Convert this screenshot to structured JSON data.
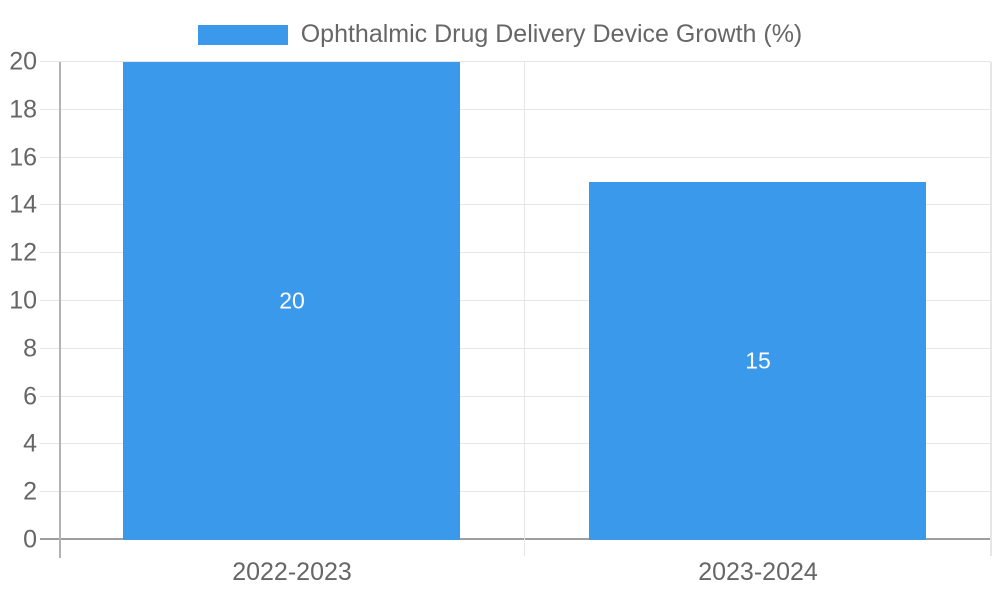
{
  "chart_data": {
    "type": "bar",
    "title": "",
    "legend": {
      "position": "top",
      "label": "Ophthalmic Drug Delivery Device Growth (%)"
    },
    "categories": [
      "2022-2023",
      "2023-2024"
    ],
    "series": [
      {
        "name": "Ophthalmic Drug Delivery Device Growth (%)",
        "values": [
          20,
          15
        ],
        "data_labels": [
          "20",
          "15"
        ]
      }
    ],
    "xlabel": "",
    "ylabel": "",
    "ylim": [
      0,
      20
    ],
    "ytick_step": 2,
    "yticks": [
      "0",
      "2",
      "4",
      "6",
      "8",
      "10",
      "12",
      "14",
      "16",
      "18",
      "20"
    ],
    "grid": true,
    "colors": {
      "bar": "#3B99EC",
      "text": "#666666",
      "data_label": "#FFFFFF",
      "gridline": "#E6E6E6",
      "zero_line": "#9E9E9E",
      "axis_line": "#B3B3B3",
      "edge_line": "#E6E6E6"
    }
  }
}
